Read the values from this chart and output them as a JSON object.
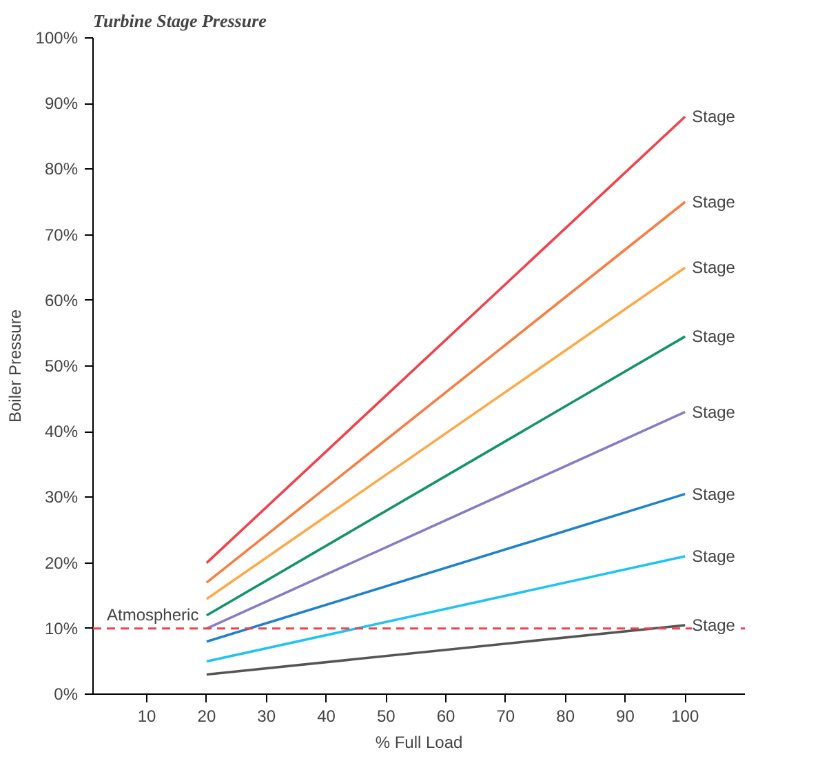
{
  "chart_data": {
    "type": "line",
    "title": "Turbine Stage Pressure",
    "xlabel": "% Full Load",
    "ylabel": "Boiler Pressure",
    "x": [
      20,
      100
    ],
    "series": [
      {
        "name": "Stage",
        "color": "#f0424a",
        "values": [
          20,
          88
        ]
      },
      {
        "name": "Stage",
        "color": "#f57f45",
        "values": [
          17,
          75
        ]
      },
      {
        "name": "Stage",
        "color": "#fca94a",
        "values": [
          14.5,
          65
        ]
      },
      {
        "name": "Stage",
        "color": "#13936a",
        "values": [
          12,
          54.5
        ]
      },
      {
        "name": "Stage",
        "color": "#8b7bc4",
        "values": [
          10,
          43
        ]
      },
      {
        "name": "Stage",
        "color": "#1e82cc",
        "values": [
          8,
          30.5
        ]
      },
      {
        "name": "Stage",
        "color": "#1ec3f2",
        "values": [
          5,
          21
        ]
      },
      {
        "name": "Stage",
        "color": "#555555",
        "values": [
          3,
          10.5
        ]
      }
    ],
    "xlim": [
      1,
      110
    ],
    "xticks": [
      10,
      20,
      30,
      40,
      50,
      60,
      70,
      80,
      90,
      100
    ],
    "ylim": [
      0,
      100
    ],
    "yticks": [
      {
        "value": 0,
        "label": "0%"
      },
      {
        "value": 10,
        "label": "10%"
      },
      {
        "value": 20,
        "label": "20%"
      },
      {
        "value": 30,
        "label": "30%"
      },
      {
        "value": 40,
        "label": "40%"
      },
      {
        "value": 50,
        "label": "50%"
      },
      {
        "value": 60,
        "label": "60%"
      },
      {
        "value": 70,
        "label": "70%"
      },
      {
        "value": 80,
        "label": "80%"
      },
      {
        "value": 90,
        "label": "90%"
      },
      {
        "value": 100,
        "label": "100%"
      }
    ],
    "ref_lines": [
      {
        "axis": "y",
        "value": 10,
        "label": "Atmospheric",
        "color": "#f0424a",
        "line_style": "dashed"
      }
    ],
    "grid": false,
    "marker": "none",
    "line_style": "solid"
  }
}
